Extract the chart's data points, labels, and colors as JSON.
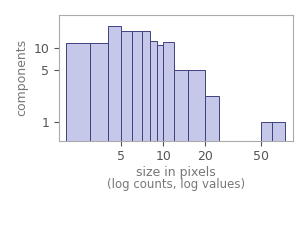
{
  "xlabel": "size in pixels",
  "xlabel2": "(log counts, log values)",
  "ylabel": "components",
  "bar_color": "#c5c8e8",
  "edge_color": "#404080",
  "background_color": "#ffffff",
  "bins_left": [
    2,
    3,
    4,
    5,
    6,
    7,
    8,
    9,
    10,
    12,
    15,
    20,
    50,
    60
  ],
  "bins_right": [
    3,
    4,
    5,
    6,
    7,
    8,
    9,
    10,
    12,
    15,
    20,
    25,
    60,
    75
  ],
  "counts": [
    11.5,
    11.8,
    20,
    17,
    17,
    17,
    12.5,
    11,
    12,
    5,
    5,
    2.2,
    1,
    1
  ],
  "xlim": [
    1.8,
    85
  ],
  "ylim": [
    0.55,
    28
  ],
  "xticks": [
    5,
    10,
    20,
    50
  ],
  "yticks": [
    1,
    5,
    10
  ],
  "tick_fontsize": 9,
  "label_fontsize": 9,
  "label_color": "#777777",
  "spine_color": "#aaaaaa"
}
